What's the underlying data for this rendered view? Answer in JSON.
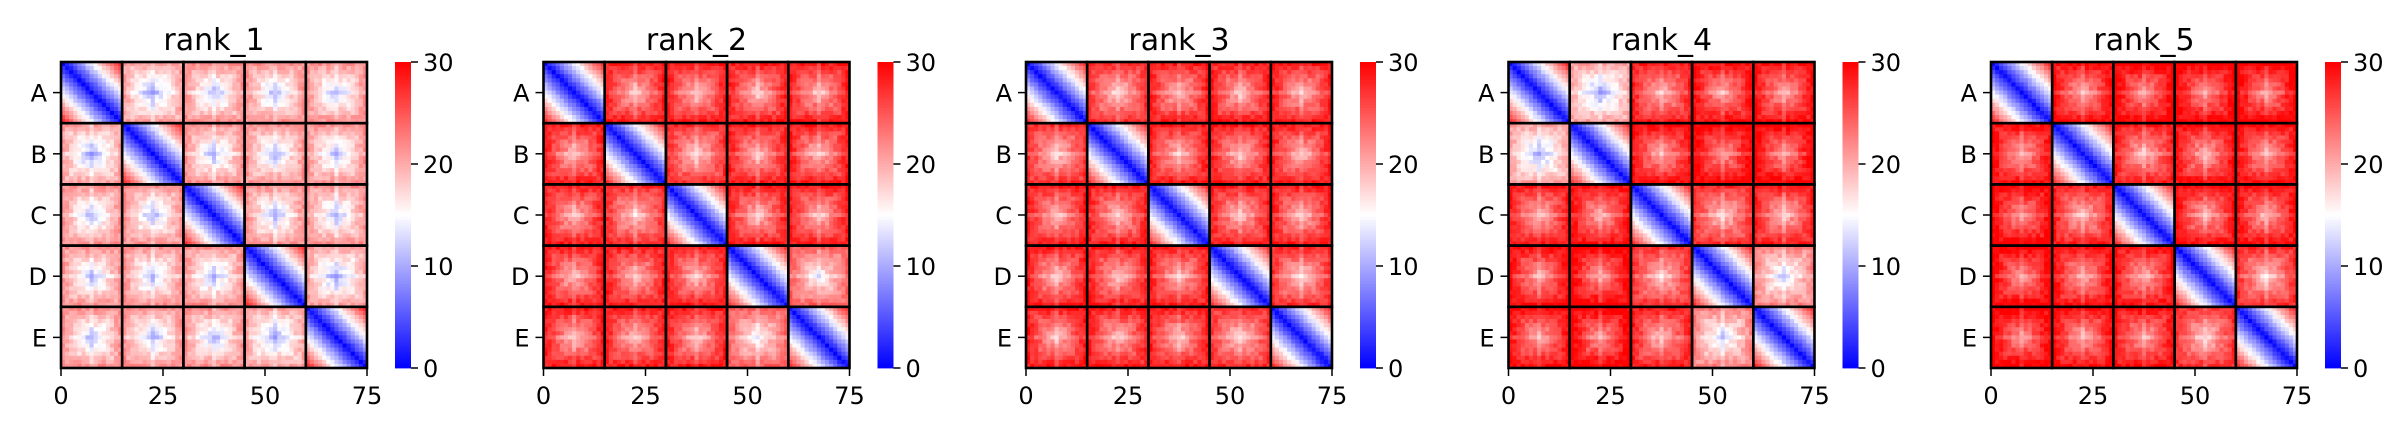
{
  "figure": {
    "colormap": "bwr",
    "colors": {
      "low": "#0000ff",
      "mid": "#ffffff",
      "high": "#ff0000",
      "block_border": "#000000"
    }
  },
  "chart_data": [
    {
      "type": "heatmap",
      "title": "rank_1",
      "xlabel": "",
      "ylabel": "",
      "xlim": [
        0,
        75
      ],
      "xticks": [
        "0",
        "25",
        "50",
        "75"
      ],
      "yticks": [
        "A",
        "B",
        "C",
        "D",
        "E"
      ],
      "block_size": 15,
      "block_labels": [
        "A",
        "B",
        "C",
        "D",
        "E"
      ],
      "colorbar": {
        "min": 0,
        "max": 30,
        "ticks": [
          "0",
          "10",
          "20",
          "30"
        ]
      },
      "block_off_diagonal_level": [
        [
          0,
          14,
          15,
          15,
          15
        ],
        [
          14,
          0,
          15,
          15,
          15
        ],
        [
          15,
          15,
          0,
          15,
          15
        ],
        [
          15,
          15,
          15,
          0,
          14
        ],
        [
          15,
          15,
          15,
          14,
          0
        ]
      ]
    },
    {
      "type": "heatmap",
      "title": "rank_2",
      "xlabel": "",
      "ylabel": "",
      "xlim": [
        0,
        75
      ],
      "xticks": [
        "0",
        "25",
        "50",
        "75"
      ],
      "yticks": [
        "A",
        "B",
        "C",
        "D",
        "E"
      ],
      "block_size": 15,
      "block_labels": [
        "A",
        "B",
        "C",
        "D",
        "E"
      ],
      "colorbar": {
        "min": 0,
        "max": 30,
        "ticks": [
          "0",
          "10",
          "20",
          "30"
        ]
      },
      "block_off_diagonal_level": [
        [
          0,
          22,
          22,
          22,
          22
        ],
        [
          22,
          0,
          21,
          22,
          22
        ],
        [
          22,
          21,
          0,
          22,
          22
        ],
        [
          22,
          22,
          22,
          0,
          18
        ],
        [
          22,
          22,
          22,
          18,
          0
        ]
      ]
    },
    {
      "type": "heatmap",
      "title": "rank_3",
      "xlabel": "",
      "ylabel": "",
      "xlim": [
        0,
        75
      ],
      "xticks": [
        "0",
        "25",
        "50",
        "75"
      ],
      "yticks": [
        "A",
        "B",
        "C",
        "D",
        "E"
      ],
      "block_size": 15,
      "block_labels": [
        "A",
        "B",
        "C",
        "D",
        "E"
      ],
      "colorbar": {
        "min": 0,
        "max": 30,
        "ticks": [
          "0",
          "10",
          "20",
          "30"
        ]
      },
      "block_off_diagonal_level": [
        [
          0,
          21,
          22,
          22,
          22
        ],
        [
          21,
          0,
          22,
          22,
          22
        ],
        [
          22,
          22,
          0,
          22,
          22
        ],
        [
          22,
          22,
          22,
          0,
          21
        ],
        [
          22,
          22,
          22,
          21,
          0
        ]
      ]
    },
    {
      "type": "heatmap",
      "title": "rank_4",
      "xlabel": "",
      "ylabel": "",
      "xlim": [
        0,
        75
      ],
      "xticks": [
        "0",
        "25",
        "50",
        "75"
      ],
      "yticks": [
        "A",
        "B",
        "C",
        "D",
        "E"
      ],
      "block_size": 15,
      "block_labels": [
        "A",
        "B",
        "C",
        "D",
        "E"
      ],
      "colorbar": {
        "min": 0,
        "max": 30,
        "ticks": [
          "0",
          "10",
          "20",
          "30"
        ]
      },
      "block_off_diagonal_level": [
        [
          0,
          14,
          22,
          23,
          23
        ],
        [
          14,
          0,
          23,
          24,
          24
        ],
        [
          22,
          23,
          0,
          21,
          22
        ],
        [
          23,
          24,
          21,
          0,
          16
        ],
        [
          23,
          24,
          22,
          16,
          0
        ]
      ]
    },
    {
      "type": "heatmap",
      "title": "rank_5",
      "xlabel": "",
      "ylabel": "",
      "xlim": [
        0,
        75
      ],
      "xticks": [
        "0",
        "25",
        "50",
        "75"
      ],
      "yticks": [
        "A",
        "B",
        "C",
        "D",
        "E"
      ],
      "block_size": 15,
      "block_labels": [
        "A",
        "B",
        "C",
        "D",
        "E"
      ],
      "colorbar": {
        "min": 0,
        "max": 30,
        "ticks": [
          "0",
          "10",
          "20",
          "30"
        ]
      },
      "block_off_diagonal_level": [
        [
          0,
          23,
          24,
          24,
          24
        ],
        [
          23,
          0,
          22,
          23,
          23
        ],
        [
          24,
          22,
          0,
          23,
          23
        ],
        [
          24,
          23,
          23,
          0,
          21
        ],
        [
          24,
          23,
          23,
          21,
          0
        ]
      ]
    }
  ]
}
